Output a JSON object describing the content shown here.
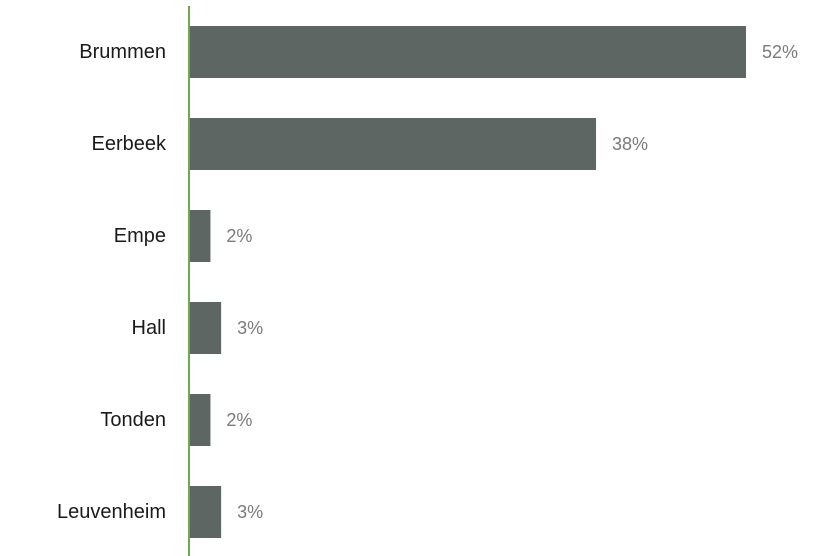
{
  "chart_data": {
    "type": "bar",
    "orientation": "horizontal",
    "categories": [
      "Brummen",
      "Eerbeek",
      "Empe",
      "Hall",
      "Tonden",
      "Leuvenheim"
    ],
    "values": [
      52,
      38,
      2,
      3,
      2,
      3
    ],
    "value_labels": [
      "52%",
      "38%",
      "2%",
      "3%",
      "2%",
      "3%"
    ],
    "unit": "%",
    "xlim": [
      0,
      52
    ],
    "grid": false,
    "legend": "none",
    "colors": {
      "bar": "#5d6662",
      "axis": "#6fa84f",
      "category_text": "#1a1a1a",
      "value_text": "#7a7a7a"
    }
  }
}
